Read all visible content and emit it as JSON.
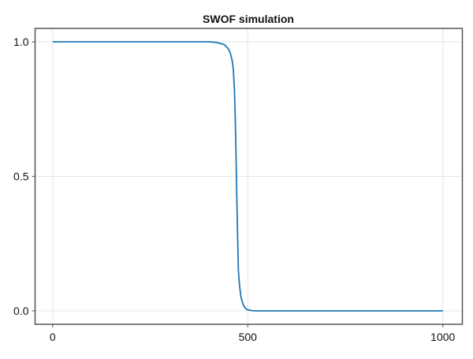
{
  "chart_data": {
    "type": "line",
    "title": "SWOF simulation",
    "xlabel": "",
    "ylabel": "",
    "xlim": [
      -45,
      1050
    ],
    "ylim": [
      -0.05,
      1.05
    ],
    "xticks": [
      {
        "value": 0,
        "label": "0"
      },
      {
        "value": 500,
        "label": "500"
      },
      {
        "value": 1000,
        "label": "1000"
      }
    ],
    "yticks": [
      {
        "value": 0,
        "label": "0.0"
      },
      {
        "value": 0.5,
        "label": "0.5"
      },
      {
        "value": 1,
        "label": "1.0"
      }
    ],
    "grid": true,
    "series": [
      {
        "color": "#1f77b4",
        "x": [
          0,
          400,
          420,
          440,
          450,
          455,
          460,
          463,
          466,
          468,
          470,
          472,
          474,
          476,
          478,
          480,
          483,
          486,
          490,
          495,
          500,
          510,
          520,
          1000
        ],
        "y": [
          1,
          1,
          0.998,
          0.99,
          0.975,
          0.96,
          0.93,
          0.9,
          0.82,
          0.72,
          0.58,
          0.42,
          0.28,
          0.15,
          0.11,
          0.08,
          0.05,
          0.033,
          0.018,
          0.008,
          0.004,
          0.001,
          0,
          0
        ]
      }
    ]
  }
}
